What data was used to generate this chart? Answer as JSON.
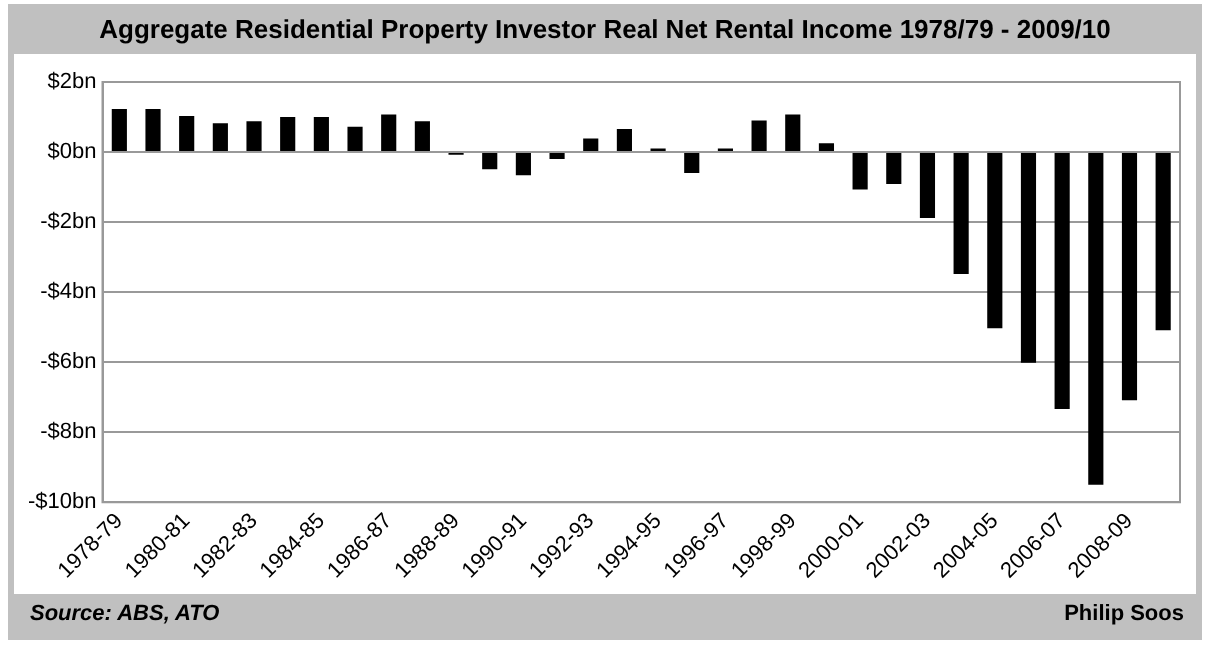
{
  "chart_data": {
    "type": "bar",
    "title": "Aggregate Residential Property Investor Real Net Rental Income 1978/79 - 2009/10",
    "categories": [
      "1978-79",
      null,
      "1980-81",
      null,
      "1982-83",
      null,
      "1984-85",
      null,
      "1986-87",
      null,
      "1988-89",
      null,
      "1990-91",
      null,
      "1992-93",
      null,
      "1994-95",
      null,
      "1996-97",
      null,
      "1998-99",
      null,
      "2000-01",
      null,
      "2002-03",
      null,
      "2004-05",
      null,
      "2006-07",
      null,
      "2008-09",
      null
    ],
    "values": [
      1.23,
      1.23,
      1.03,
      0.82,
      0.88,
      1.0,
      1.0,
      0.72,
      1.07,
      0.88,
      -0.08,
      -0.49,
      -0.66,
      -0.2,
      0.39,
      0.66,
      0.1,
      -0.6,
      0.1,
      0.9,
      1.07,
      0.25,
      -1.07,
      -0.91,
      -1.88,
      -3.48,
      -5.03,
      -6.02,
      -7.34,
      -9.5,
      -7.09,
      -5.09
    ],
    "color": "#000000",
    "ylim": [
      -10,
      2
    ],
    "yticks": [
      {
        "value": -10,
        "label": "-$10bn"
      },
      {
        "value": -8,
        "label": "-$8bn"
      },
      {
        "value": -6,
        "label": "-$6bn"
      },
      {
        "value": -4,
        "label": "-$4bn"
      },
      {
        "value": -2,
        "label": "-$2bn"
      },
      {
        "value": 0,
        "label": "$0bn"
      },
      {
        "value": 2,
        "label": "$2bn"
      }
    ],
    "grid": "y",
    "annotations": [
      "Source: ABS, ATO",
      "Philip Soos"
    ]
  }
}
